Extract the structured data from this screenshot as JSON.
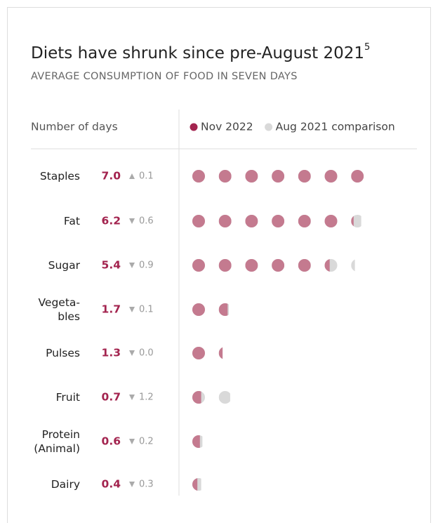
{
  "chart_data": {
    "type": "dot",
    "title": "Diets have shrunk since pre-August 2021",
    "title_note": "5",
    "subtitle": "AVERAGE CONSUMPTION OF FOOD IN SEVEN DAYS",
    "row_header": "Number of days",
    "categories": [
      [
        "Staples"
      ],
      [
        "Fat"
      ],
      [
        "Sugar"
      ],
      [
        "Vegeta-",
        "bles"
      ],
      [
        "Pulses"
      ],
      [
        "Fruit"
      ],
      [
        "Protein",
        "(Animal)"
      ],
      [
        "Dairy"
      ]
    ],
    "dots": 7,
    "series": [
      {
        "name": "Nov 2022",
        "color": "#c47a8f",
        "legend_color": "#a3244f",
        "values": [
          7.0,
          6.2,
          5.4,
          1.7,
          1.3,
          0.7,
          0.6,
          0.4
        ],
        "value_labels": [
          "7.0",
          "6.2",
          "5.4",
          "1.7",
          "1.3",
          "0.7",
          "0.6",
          "0.4"
        ]
      },
      {
        "name": "Aug 2021 comparison",
        "color": "#d9d9d9",
        "legend_color": "#d9d9d9",
        "values": [
          6.9,
          6.8,
          6.3,
          1.8,
          1.3,
          1.9,
          0.8,
          0.7
        ]
      }
    ],
    "change": {
      "values": [
        0.1,
        -0.6,
        -0.9,
        -0.1,
        0.0,
        -1.2,
        -0.2,
        -0.3
      ],
      "value_labels": [
        "0.1",
        "0.6",
        "0.9",
        "0.1",
        "0.0",
        "1.2",
        "0.2",
        "0.3"
      ]
    }
  }
}
